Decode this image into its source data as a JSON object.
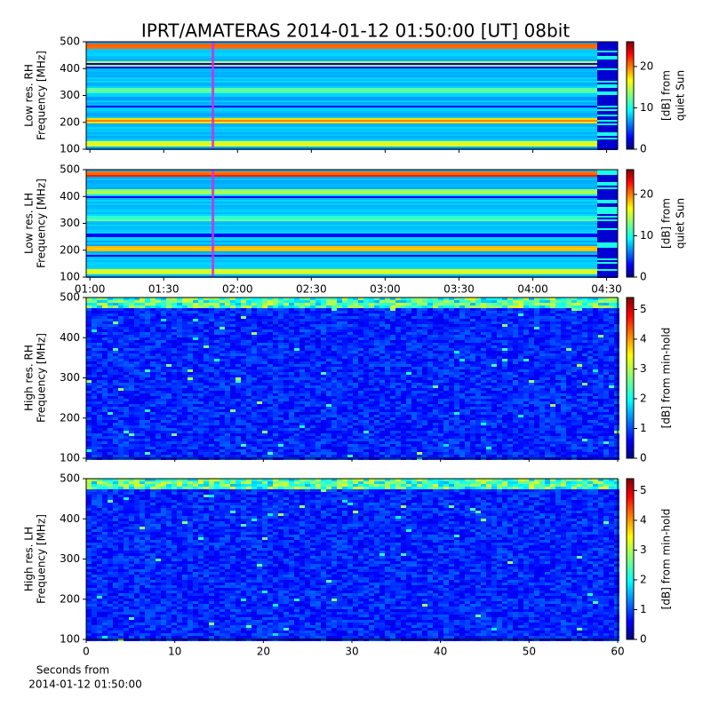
{
  "chart_data": [
    {
      "type": "heatmap",
      "title": "IPRT/AMATERAS 2014-01-12 01:50:00 [UT]   08bit",
      "ylabel": [
        "Low res. RH",
        "Frequency [MHz]"
      ],
      "xlim": [
        58.5,
        274.5
      ],
      "xticks": [
        60,
        90,
        120,
        150,
        180,
        210,
        240,
        270
      ],
      "show_xtick_labels": false,
      "ylim": [
        100,
        500
      ],
      "yticks": [
        100,
        200,
        300,
        400,
        500
      ],
      "clim": [
        0,
        26
      ],
      "cticks": [
        0,
        10,
        20
      ],
      "clabel": [
        "[dB] from",
        "quiet Sun"
      ],
      "colormap": "jet",
      "cursor": {
        "value": 110,
        "color": "#d030e0"
      }
    },
    {
      "type": "heatmap",
      "ylabel": [
        "Low res. LH",
        "Frequency [MHz]"
      ],
      "xlim": [
        58.5,
        274.5
      ],
      "xticks": [
        {
          "value": 60,
          "label": "01:00"
        },
        {
          "value": 90,
          "label": "01:30"
        },
        {
          "value": 120,
          "label": "02:00"
        },
        {
          "value": 150,
          "label": "02:30"
        },
        {
          "value": 180,
          "label": "03:00"
        },
        {
          "value": 210,
          "label": "03:30"
        },
        {
          "value": 240,
          "label": "04:00"
        },
        {
          "value": 270,
          "label": "04:30"
        }
      ],
      "show_xtick_labels": true,
      "ylim": [
        100,
        500
      ],
      "yticks": [
        100,
        200,
        300,
        400,
        500
      ],
      "clim": [
        0,
        26
      ],
      "cticks": [
        0,
        10,
        20
      ],
      "clabel": [
        "[dB] from",
        "quiet Sun"
      ],
      "colormap": "jet",
      "cursor": {
        "value": 110,
        "color": "#d030e0"
      }
    },
    {
      "type": "heatmap",
      "ylabel": [
        "High res. RH",
        "Frequency [MHz]"
      ],
      "xlim": [
        0,
        60
      ],
      "xticks": [
        0,
        10,
        20,
        30,
        40,
        50,
        60
      ],
      "show_xtick_labels": false,
      "ylim": [
        100,
        500
      ],
      "yticks": [
        100,
        200,
        300,
        400,
        500
      ],
      "clim": [
        0,
        5.4
      ],
      "cticks": [
        0,
        1,
        2,
        3,
        4,
        5
      ],
      "clabel": [
        "[dB] from min-hold"
      ],
      "colormap": "jet"
    },
    {
      "type": "heatmap",
      "ylabel": [
        "High res. LH",
        "Frequency [MHz]"
      ],
      "xlim": [
        0,
        60
      ],
      "xticks": [
        0,
        10,
        20,
        30,
        40,
        50,
        60
      ],
      "show_xtick_labels": true,
      "xlabel": [
        "Seconds from",
        "2014-01-12 01:50:00"
      ],
      "ylim": [
        100,
        500
      ],
      "yticks": [
        100,
        200,
        300,
        400,
        500
      ],
      "clim": [
        0,
        5.4
      ],
      "cticks": [
        0,
        1,
        2,
        3,
        4,
        5
      ],
      "clabel": [
        "[dB] from min-hold"
      ],
      "colormap": "jet"
    }
  ]
}
